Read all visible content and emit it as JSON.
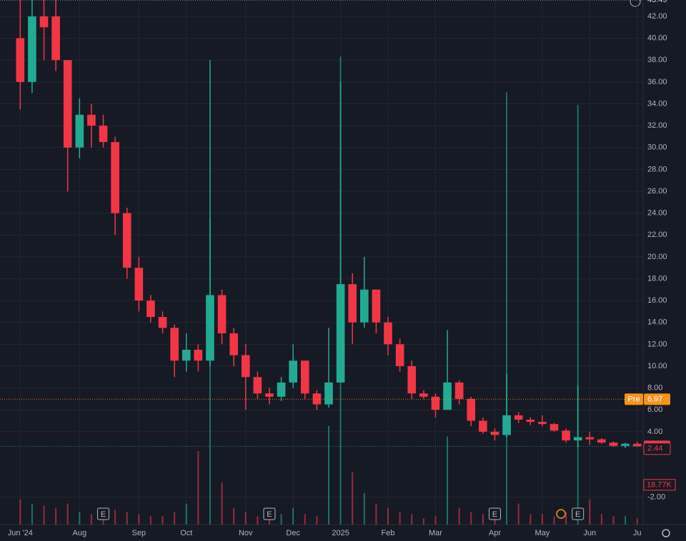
{
  "chart_data": {
    "type": "candlestick",
    "categories": [
      "Jun '24",
      null,
      null,
      null,
      null,
      "Aug",
      null,
      null,
      null,
      null,
      "Sep",
      null,
      null,
      null,
      "Oct",
      null,
      null,
      null,
      null,
      "Nov",
      null,
      null,
      null,
      "Dec",
      null,
      null,
      null,
      "2025",
      null,
      null,
      null,
      "Feb",
      null,
      null,
      null,
      "Mar",
      null,
      null,
      null,
      null,
      "Apr",
      null,
      null,
      null,
      "May",
      null,
      null,
      null,
      "Jun",
      null,
      null,
      null,
      "Ju"
    ],
    "open": [
      40,
      36,
      42,
      42,
      38,
      30,
      33,
      32,
      30.5,
      24,
      19,
      16,
      14.5,
      13.5,
      10.5,
      11.5,
      10.5,
      16.5,
      13,
      11,
      9,
      7.5,
      7.2,
      8.5,
      10.5,
      7.5,
      6.5,
      8.5,
      17.5,
      14,
      17,
      14,
      12,
      10,
      7.5,
      7.2,
      6,
      8.5,
      7,
      5,
      4,
      3.7,
      5.5,
      5.1,
      4.9,
      4.7,
      4.1,
      3.2,
      3.5,
      3.3,
      3,
      2.7,
      2.9
    ],
    "high": [
      43.5,
      43.5,
      43.5,
      43.5,
      38,
      34.5,
      34,
      33,
      31,
      24.5,
      20,
      16.5,
      15,
      13.8,
      13,
      12,
      38,
      17,
      13.5,
      12,
      9.5,
      8,
      9,
      12,
      10.5,
      7.8,
      13.5,
      36,
      18.5,
      20,
      17,
      14.5,
      12.5,
      10.5,
      7.8,
      7.5,
      13.3,
      8.7,
      7.2,
      5.3,
      4.3,
      9.3,
      5.8,
      5.3,
      5.5,
      4.8,
      4.3,
      8.2,
      4,
      3.4,
      3.1,
      3,
      3.1
    ],
    "low": [
      33.5,
      35,
      38,
      37,
      26,
      29,
      30,
      30,
      22,
      18,
      15,
      14,
      13,
      9,
      9.5,
      9.5,
      10,
      12,
      10,
      6,
      7,
      6.5,
      6.8,
      8,
      7,
      6,
      6.2,
      8.5,
      12,
      13.5,
      13,
      11,
      9.5,
      7,
      7,
      5.3,
      6,
      6.5,
      4.5,
      3.8,
      3.2,
      3.5,
      4.8,
      4.6,
      4.5,
      4,
      3,
      2.6,
      2.8,
      2.9,
      2.6,
      2.5,
      2.6
    ],
    "close": [
      36,
      42,
      41,
      38,
      30,
      33,
      32,
      30.5,
      24,
      19,
      16,
      14.5,
      13.5,
      10.5,
      11.5,
      10.5,
      16.5,
      13,
      11,
      9,
      7.5,
      7.2,
      8.5,
      10.5,
      7.5,
      6.5,
      8.5,
      17.5,
      14,
      17,
      14,
      12,
      10,
      7.5,
      7.2,
      6,
      8.5,
      7,
      5,
      4,
      3.7,
      5.5,
      5.1,
      4.9,
      4.7,
      4.1,
      3.2,
      3.5,
      3.3,
      3,
      2.7,
      2.9,
      2.66
    ],
    "volume": [
      12,
      10,
      9,
      8,
      10,
      6,
      5,
      5,
      7,
      6,
      5,
      4,
      4,
      6,
      10,
      35,
      146,
      20,
      8,
      6,
      4,
      4,
      5,
      8,
      5,
      4,
      47,
      223,
      25,
      15,
      10,
      8,
      6,
      5,
      3,
      4,
      42,
      8,
      6,
      5,
      5,
      206,
      10,
      5,
      5,
      4,
      6,
      200,
      12,
      5,
      4,
      4,
      3
    ],
    "ylim": [
      -4.5,
      43.5
    ],
    "vlim": [
      0,
      250
    ],
    "yticks": [
      {
        "value": -2,
        "label": "-2.00"
      },
      {
        "value": 4,
        "label": "4.00"
      },
      {
        "value": 6,
        "label": "6.00"
      },
      {
        "value": 8,
        "label": "8.00"
      },
      {
        "value": 10,
        "label": "10.00"
      },
      {
        "value": 12,
        "label": "12.00"
      },
      {
        "value": 14,
        "label": "14.00"
      },
      {
        "value": 16,
        "label": "16.00"
      },
      {
        "value": 18,
        "label": "18.00"
      },
      {
        "value": 20,
        "label": "20.00"
      },
      {
        "value": 22,
        "label": "22.00"
      },
      {
        "value": 24,
        "label": "24.00"
      },
      {
        "value": 26,
        "label": "26.00"
      },
      {
        "value": 28,
        "label": "28.00"
      },
      {
        "value": 30,
        "label": "30.00"
      },
      {
        "value": 32,
        "label": "32.00"
      },
      {
        "value": 34,
        "label": "34.00"
      },
      {
        "value": 36,
        "label": "36.00"
      },
      {
        "value": 38,
        "label": "38.00"
      },
      {
        "value": 40,
        "label": "40.00"
      },
      {
        "value": 42,
        "label": "42.00"
      }
    ],
    "up_color": "#22ab94",
    "down_color": "#f23645",
    "grid": true,
    "annotations": [
      {
        "value": 43.49,
        "label": "43.49",
        "color": "#d1d4dc",
        "line": true
      },
      {
        "value": 6.97,
        "label": "6.97",
        "tag": "Pre",
        "color": "#f7931a",
        "line": true
      },
      {
        "value": 2.66,
        "label": "2.66",
        "color": "#22ab94",
        "line": true
      },
      {
        "value": 2.65,
        "label": "2.65",
        "color": "#f23645"
      },
      {
        "value": 2.44,
        "label": "2.44",
        "color": "#f23645",
        "outline": true
      }
    ],
    "volume_label": {
      "value": 18.77,
      "label": "18.77K",
      "color": "#f23645"
    },
    "events": [
      {
        "index": 7,
        "label": "E"
      },
      {
        "index": 21,
        "label": "E"
      },
      {
        "index": 40,
        "label": "E"
      },
      {
        "index": 47,
        "label": "E"
      }
    ]
  }
}
